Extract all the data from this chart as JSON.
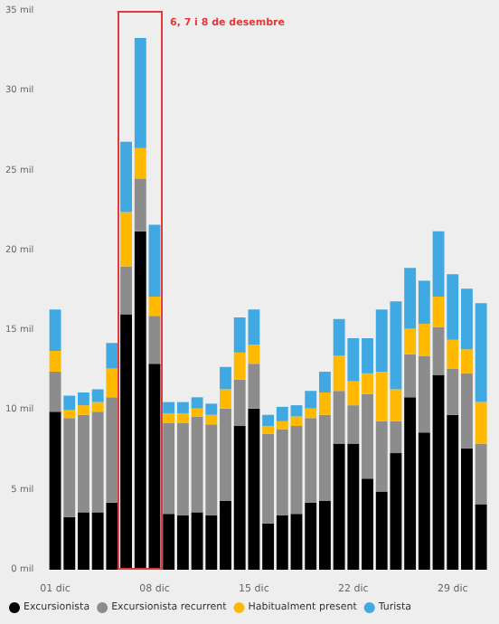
{
  "chart_data": {
    "type": "bar",
    "stacked": true,
    "categories": [
      "01 dic",
      null,
      null,
      null,
      null,
      null,
      null,
      "08 dic",
      null,
      null,
      null,
      null,
      null,
      null,
      "15 dic",
      null,
      null,
      null,
      null,
      null,
      null,
      "22 dic",
      null,
      null,
      null,
      null,
      null,
      null,
      "29 dic",
      null,
      null
    ],
    "series": [
      {
        "name": "Excursionista",
        "color": "#000000",
        "values": [
          9.9,
          3.3,
          3.6,
          3.6,
          4.2,
          16.0,
          21.2,
          12.9,
          3.5,
          3.4,
          3.6,
          3.4,
          4.3,
          9.0,
          10.1,
          2.9,
          3.4,
          3.5,
          4.2,
          4.3,
          7.9,
          7.9,
          5.7,
          4.9,
          7.3,
          10.8,
          8.6,
          12.2,
          9.7,
          7.6,
          4.1
        ]
      },
      {
        "name": "Excursionista recurrent",
        "color": "#8c8c8c",
        "values": [
          2.5,
          6.2,
          6.1,
          6.3,
          6.6,
          3.0,
          3.3,
          3.0,
          5.7,
          5.8,
          6.0,
          5.7,
          5.8,
          2.9,
          2.8,
          5.6,
          5.4,
          5.5,
          5.3,
          5.4,
          3.3,
          2.4,
          5.3,
          4.4,
          2.0,
          2.7,
          4.8,
          3.0,
          2.9,
          4.7,
          3.8
        ]
      },
      {
        "name": "Habitualment present",
        "color": "#ffb900",
        "values": [
          1.3,
          0.5,
          0.6,
          0.6,
          1.8,
          3.4,
          1.9,
          1.2,
          0.6,
          0.6,
          0.5,
          0.6,
          1.2,
          1.7,
          1.2,
          0.5,
          0.5,
          0.6,
          0.6,
          1.4,
          2.2,
          1.5,
          1.3,
          3.1,
          2.0,
          1.6,
          2.0,
          1.9,
          1.8,
          1.5,
          2.6
        ]
      },
      {
        "name": "Turista",
        "color": "#41a9e1",
        "values": [
          2.6,
          0.9,
          0.8,
          0.8,
          1.6,
          4.4,
          6.9,
          4.5,
          0.7,
          0.7,
          0.7,
          0.7,
          1.4,
          2.2,
          2.2,
          0.7,
          0.9,
          0.7,
          1.1,
          1.3,
          2.3,
          2.7,
          2.2,
          3.9,
          5.5,
          3.8,
          2.7,
          4.1,
          4.1,
          3.8,
          6.2
        ]
      }
    ],
    "ylim": [
      0,
      35
    ],
    "yticks": [
      {
        "value": 0,
        "label": "0 mil"
      },
      {
        "value": 5,
        "label": "5 mil"
      },
      {
        "value": 10,
        "label": "10 mil"
      },
      {
        "value": 15,
        "label": "15 mil"
      },
      {
        "value": 20,
        "label": "20 mil"
      },
      {
        "value": 25,
        "label": "25 mil"
      },
      {
        "value": 30,
        "label": "30 mil"
      },
      {
        "value": 35,
        "label": "35 mil"
      }
    ],
    "grid": false,
    "legend": "bottom left",
    "annotations": [
      "6, 7 i 8 de desembre"
    ]
  }
}
